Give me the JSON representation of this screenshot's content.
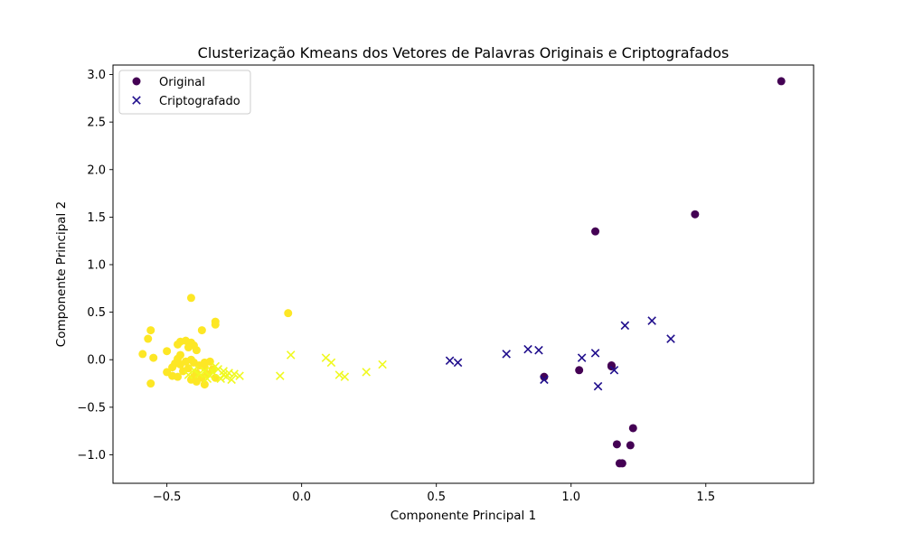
{
  "chart_data": {
    "type": "scatter",
    "title": "Clusterização Kmeans dos Vetores de Palavras Originais e Criptografados",
    "xlabel": "Componente Principal 1",
    "ylabel": "Componente Principal 2",
    "xlim": [
      -0.7,
      1.9
    ],
    "ylim": [
      -1.3,
      3.1
    ],
    "xticks": [
      -0.5,
      0.0,
      0.5,
      1.0,
      1.5
    ],
    "xtick_labels": [
      "−0.5",
      "0.0",
      "0.5",
      "1.0",
      "1.5"
    ],
    "yticks": [
      -1.0,
      -0.5,
      0.0,
      0.5,
      1.0,
      1.5,
      2.0,
      2.5,
      3.0
    ],
    "ytick_labels": [
      "−1.0",
      "−0.5",
      "0.0",
      "0.5",
      "1.0",
      "1.5",
      "2.0",
      "2.5",
      "3.0"
    ],
    "grid": false,
    "legend": {
      "placement": "top-left",
      "entries": [
        "Original",
        "Criptografado"
      ]
    },
    "colors": {
      "cluster_a": "#440154",
      "cluster_b": "#fde725",
      "cluster_c": "#1f0d8c",
      "cluster_d": "#f0f921",
      "legend_original": "#440154",
      "legend_cripto": "#1f0d8c"
    },
    "series": [
      {
        "name": "Original",
        "marker": "circle",
        "points": [
          {
            "x": 1.78,
            "y": 2.93,
            "c": "a"
          },
          {
            "x": 1.46,
            "y": 1.53,
            "c": "a"
          },
          {
            "x": 1.09,
            "y": 1.35,
            "c": "a"
          },
          {
            "x": 0.9,
            "y": -0.18,
            "c": "a"
          },
          {
            "x": 1.03,
            "y": -0.11,
            "c": "a"
          },
          {
            "x": 1.15,
            "y": -0.07,
            "c": "a"
          },
          {
            "x": 1.15,
            "y": -0.06,
            "c": "a"
          },
          {
            "x": 1.23,
            "y": -0.72,
            "c": "a"
          },
          {
            "x": 1.17,
            "y": -0.89,
            "c": "a"
          },
          {
            "x": 1.22,
            "y": -0.9,
            "c": "a"
          },
          {
            "x": 1.18,
            "y": -1.09,
            "c": "a"
          },
          {
            "x": 1.19,
            "y": -1.09,
            "c": "a"
          },
          {
            "x": -0.41,
            "y": 0.65,
            "c": "b"
          },
          {
            "x": -0.05,
            "y": 0.49,
            "c": "b"
          },
          {
            "x": -0.32,
            "y": 0.4,
            "c": "b"
          },
          {
            "x": -0.32,
            "y": 0.37,
            "c": "b"
          },
          {
            "x": -0.56,
            "y": 0.31,
            "c": "b"
          },
          {
            "x": -0.37,
            "y": 0.31,
            "c": "b"
          },
          {
            "x": -0.57,
            "y": 0.22,
            "c": "b"
          },
          {
            "x": -0.45,
            "y": 0.19,
            "c": "b"
          },
          {
            "x": -0.43,
            "y": 0.2,
            "c": "b"
          },
          {
            "x": -0.41,
            "y": 0.18,
            "c": "b"
          },
          {
            "x": -0.4,
            "y": 0.15,
            "c": "b"
          },
          {
            "x": -0.46,
            "y": 0.16,
            "c": "b"
          },
          {
            "x": -0.42,
            "y": 0.13,
            "c": "b"
          },
          {
            "x": -0.39,
            "y": 0.1,
            "c": "b"
          },
          {
            "x": -0.5,
            "y": 0.09,
            "c": "b"
          },
          {
            "x": -0.59,
            "y": 0.06,
            "c": "b"
          },
          {
            "x": -0.45,
            "y": 0.05,
            "c": "b"
          },
          {
            "x": -0.46,
            "y": 0.01,
            "c": "b"
          },
          {
            "x": -0.55,
            "y": 0.02,
            "c": "b"
          },
          {
            "x": -0.41,
            "y": 0.0,
            "c": "b"
          },
          {
            "x": -0.43,
            "y": -0.02,
            "c": "b"
          },
          {
            "x": -0.4,
            "y": -0.03,
            "c": "b"
          },
          {
            "x": -0.36,
            "y": -0.03,
            "c": "b"
          },
          {
            "x": -0.34,
            "y": -0.02,
            "c": "b"
          },
          {
            "x": -0.47,
            "y": -0.04,
            "c": "b"
          },
          {
            "x": -0.45,
            "y": -0.05,
            "c": "b"
          },
          {
            "x": -0.38,
            "y": -0.06,
            "c": "b"
          },
          {
            "x": -0.48,
            "y": -0.08,
            "c": "b"
          },
          {
            "x": -0.36,
            "y": -0.08,
            "c": "b"
          },
          {
            "x": -0.42,
            "y": -0.09,
            "c": "b"
          },
          {
            "x": -0.33,
            "y": -0.1,
            "c": "b"
          },
          {
            "x": -0.5,
            "y": -0.13,
            "c": "b"
          },
          {
            "x": -0.44,
            "y": -0.12,
            "c": "b"
          },
          {
            "x": -0.39,
            "y": -0.14,
            "c": "b"
          },
          {
            "x": -0.35,
            "y": -0.15,
            "c": "b"
          },
          {
            "x": -0.48,
            "y": -0.17,
            "c": "b"
          },
          {
            "x": -0.46,
            "y": -0.18,
            "c": "b"
          },
          {
            "x": -0.4,
            "y": -0.18,
            "c": "b"
          },
          {
            "x": -0.37,
            "y": -0.19,
            "c": "b"
          },
          {
            "x": -0.32,
            "y": -0.19,
            "c": "b"
          },
          {
            "x": -0.41,
            "y": -0.21,
            "c": "b"
          },
          {
            "x": -0.39,
            "y": -0.23,
            "c": "b"
          },
          {
            "x": -0.56,
            "y": -0.25,
            "c": "b"
          },
          {
            "x": -0.36,
            "y": -0.26,
            "c": "b"
          }
        ]
      },
      {
        "name": "Criptografado",
        "marker": "x",
        "points": [
          {
            "x": 1.3,
            "y": 0.41,
            "c": "c"
          },
          {
            "x": 1.2,
            "y": 0.36,
            "c": "c"
          },
          {
            "x": 1.37,
            "y": 0.22,
            "c": "c"
          },
          {
            "x": 0.84,
            "y": 0.11,
            "c": "c"
          },
          {
            "x": 0.88,
            "y": 0.1,
            "c": "c"
          },
          {
            "x": 1.09,
            "y": 0.07,
            "c": "c"
          },
          {
            "x": 0.76,
            "y": 0.06,
            "c": "c"
          },
          {
            "x": 1.04,
            "y": 0.02,
            "c": "c"
          },
          {
            "x": 0.55,
            "y": -0.01,
            "c": "c"
          },
          {
            "x": 0.58,
            "y": -0.03,
            "c": "c"
          },
          {
            "x": 1.16,
            "y": -0.11,
            "c": "c"
          },
          {
            "x": 0.9,
            "y": -0.21,
            "c": "c"
          },
          {
            "x": 1.1,
            "y": -0.28,
            "c": "c"
          },
          {
            "x": -0.04,
            "y": 0.05,
            "c": "d"
          },
          {
            "x": 0.09,
            "y": 0.02,
            "c": "d"
          },
          {
            "x": 0.11,
            "y": -0.03,
            "c": "d"
          },
          {
            "x": 0.3,
            "y": -0.05,
            "c": "d"
          },
          {
            "x": 0.24,
            "y": -0.13,
            "c": "d"
          },
          {
            "x": 0.14,
            "y": -0.16,
            "c": "d"
          },
          {
            "x": 0.16,
            "y": -0.18,
            "c": "d"
          },
          {
            "x": -0.08,
            "y": -0.17,
            "c": "d"
          },
          {
            "x": -0.23,
            "y": -0.17,
            "c": "d"
          },
          {
            "x": -0.25,
            "y": -0.15,
            "c": "d"
          },
          {
            "x": -0.27,
            "y": -0.14,
            "c": "d"
          },
          {
            "x": -0.29,
            "y": -0.12,
            "c": "d"
          },
          {
            "x": -0.31,
            "y": -0.1,
            "c": "d"
          },
          {
            "x": -0.33,
            "y": -0.13,
            "c": "d"
          },
          {
            "x": -0.28,
            "y": -0.18,
            "c": "d"
          },
          {
            "x": -0.3,
            "y": -0.2,
            "c": "d"
          },
          {
            "x": -0.26,
            "y": -0.21,
            "c": "d"
          },
          {
            "x": -0.34,
            "y": -0.17,
            "c": "d"
          },
          {
            "x": -0.36,
            "y": -0.12,
            "c": "d"
          },
          {
            "x": -0.38,
            "y": -0.15,
            "c": "d"
          },
          {
            "x": -0.42,
            "y": -0.16,
            "c": "d"
          },
          {
            "x": -0.4,
            "y": -0.11,
            "c": "d"
          },
          {
            "x": -0.32,
            "y": -0.07,
            "c": "d"
          },
          {
            "x": -0.35,
            "y": -0.2,
            "c": "d"
          },
          {
            "x": -0.29,
            "y": -0.16,
            "c": "d"
          }
        ]
      }
    ]
  }
}
